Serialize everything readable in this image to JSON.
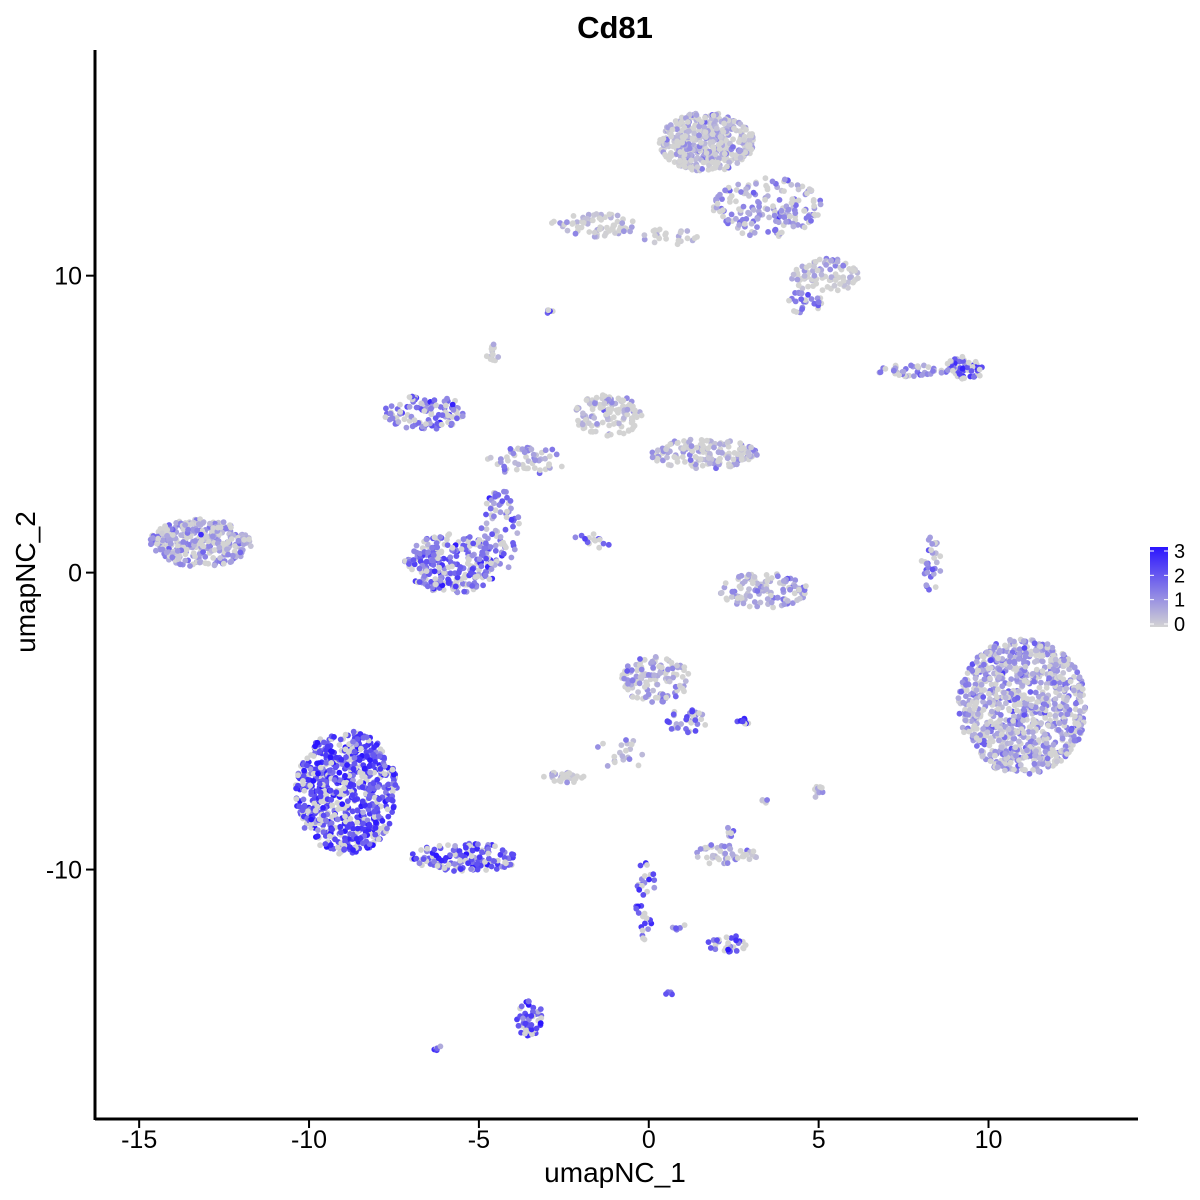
{
  "chart_data": {
    "type": "scatter",
    "title": "Cd81",
    "xlabel": "umapNC_1",
    "ylabel": "umapNC_2",
    "xlim": [
      -16.3,
      14.4
    ],
    "ylim": [
      -18.4,
      17.6
    ],
    "xticks": [
      -15,
      -10,
      -5,
      0,
      5,
      10
    ],
    "xtick_labels": [
      "-15",
      "-10",
      "-5",
      "0",
      "5",
      "10"
    ],
    "yticks": [
      -10,
      0,
      10
    ],
    "ytick_labels": [
      "-10",
      "0",
      "10"
    ],
    "grid": false,
    "legend": {
      "position": "right",
      "type": "colorbar",
      "ticks": [
        0,
        1,
        2,
        3
      ],
      "tick_labels": [
        "3",
        "2",
        "1",
        "0"
      ],
      "low_color": "#d3d3d3",
      "high_color": "#2b15ff"
    },
    "clusters": [
      {
        "cx": 1.7,
        "cy": 14.5,
        "rx": 1.4,
        "ry": 1.0,
        "n": 420,
        "expr": 0.4
      },
      {
        "cx": 3.5,
        "cy": 12.3,
        "rx": 1.6,
        "ry": 1.0,
        "n": 170,
        "expr": 0.9
      },
      {
        "cx": -1.6,
        "cy": 11.7,
        "rx": 1.3,
        "ry": 0.4,
        "n": 70,
        "expr": 0.1
      },
      {
        "cx": 0.6,
        "cy": 11.3,
        "rx": 1.0,
        "ry": 0.3,
        "n": 25,
        "expr": 0.1
      },
      {
        "cx": 5.2,
        "cy": 10.0,
        "rx": 1.0,
        "ry": 0.6,
        "n": 90,
        "expr": 0.4
      },
      {
        "cx": 4.6,
        "cy": 9.1,
        "rx": 0.5,
        "ry": 0.4,
        "n": 25,
        "expr": 1.5
      },
      {
        "cx": -2.9,
        "cy": 8.8,
        "rx": 0.1,
        "ry": 0.1,
        "n": 5,
        "expr": 2.0
      },
      {
        "cx": -4.6,
        "cy": 7.4,
        "rx": 0.2,
        "ry": 0.3,
        "n": 12,
        "expr": 0.0
      },
      {
        "cx": 9.3,
        "cy": 6.9,
        "rx": 0.6,
        "ry": 0.4,
        "n": 60,
        "expr": 1.8
      },
      {
        "cx": 7.7,
        "cy": 6.8,
        "rx": 1.0,
        "ry": 0.2,
        "n": 40,
        "expr": 0.9
      },
      {
        "cx": -6.6,
        "cy": 5.4,
        "rx": 1.2,
        "ry": 0.6,
        "n": 110,
        "expr": 1.5
      },
      {
        "cx": -1.2,
        "cy": 5.3,
        "rx": 1.0,
        "ry": 0.7,
        "n": 120,
        "expr": 0.1
      },
      {
        "cx": 1.6,
        "cy": 4.0,
        "rx": 1.6,
        "ry": 0.5,
        "n": 160,
        "expr": 0.4
      },
      {
        "cx": -3.6,
        "cy": 3.8,
        "rx": 1.2,
        "ry": 0.5,
        "n": 60,
        "expr": 0.7
      },
      {
        "cx": -4.4,
        "cy": 1.4,
        "rx": 0.6,
        "ry": 1.4,
        "n": 70,
        "expr": 1.2
      },
      {
        "cx": -13.2,
        "cy": 1.0,
        "rx": 1.5,
        "ry": 0.8,
        "n": 330,
        "expr": 0.8
      },
      {
        "cx": -5.8,
        "cy": 0.3,
        "rx": 1.4,
        "ry": 1.0,
        "n": 260,
        "expr": 1.6
      },
      {
        "cx": -1.6,
        "cy": 1.1,
        "rx": 0.6,
        "ry": 0.3,
        "n": 15,
        "expr": 1.8
      },
      {
        "cx": 3.4,
        "cy": -0.6,
        "rx": 1.3,
        "ry": 0.6,
        "n": 110,
        "expr": 0.6
      },
      {
        "cx": 8.3,
        "cy": 0.3,
        "rx": 0.3,
        "ry": 0.9,
        "n": 30,
        "expr": 1.4
      },
      {
        "cx": 11.0,
        "cy": -4.5,
        "rx": 1.9,
        "ry": 2.3,
        "n": 950,
        "expr": 0.8
      },
      {
        "cx": 0.2,
        "cy": -3.6,
        "rx": 1.0,
        "ry": 0.8,
        "n": 130,
        "expr": 0.6
      },
      {
        "cx": 1.1,
        "cy": -5.0,
        "rx": 0.6,
        "ry": 0.4,
        "n": 35,
        "expr": 1.3
      },
      {
        "cx": 2.8,
        "cy": -5.0,
        "rx": 0.2,
        "ry": 0.1,
        "n": 10,
        "expr": 2.5
      },
      {
        "cx": -0.8,
        "cy": -6.1,
        "rx": 0.8,
        "ry": 0.5,
        "n": 20,
        "expr": 0.3
      },
      {
        "cx": -2.5,
        "cy": -6.9,
        "rx": 0.6,
        "ry": 0.2,
        "n": 35,
        "expr": 0.2
      },
      {
        "cx": -8.9,
        "cy": -7.4,
        "rx": 1.5,
        "ry": 2.1,
        "n": 720,
        "expr": 2.2
      },
      {
        "cx": -5.4,
        "cy": -9.6,
        "rx": 1.6,
        "ry": 0.5,
        "n": 140,
        "expr": 2.0
      },
      {
        "cx": 5.0,
        "cy": -7.4,
        "rx": 0.2,
        "ry": 0.2,
        "n": 10,
        "expr": 0.3
      },
      {
        "cx": 3.4,
        "cy": -7.6,
        "rx": 0.1,
        "ry": 0.2,
        "n": 5,
        "expr": 0.5
      },
      {
        "cx": 2.3,
        "cy": -9.5,
        "rx": 0.9,
        "ry": 0.4,
        "n": 50,
        "expr": 0.5
      },
      {
        "cx": 2.4,
        "cy": -8.7,
        "rx": 0.1,
        "ry": 0.2,
        "n": 8,
        "expr": 0.3
      },
      {
        "cx": -0.1,
        "cy": -11.0,
        "rx": 0.3,
        "ry": 1.4,
        "n": 35,
        "expr": 2.0
      },
      {
        "cx": 2.3,
        "cy": -12.5,
        "rx": 0.6,
        "ry": 0.3,
        "n": 30,
        "expr": 2.0
      },
      {
        "cx": 0.8,
        "cy": -11.9,
        "rx": 0.3,
        "ry": 0.2,
        "n": 6,
        "expr": 1.5
      },
      {
        "cx": -3.5,
        "cy": -15.0,
        "rx": 0.4,
        "ry": 0.7,
        "n": 45,
        "expr": 2.1
      },
      {
        "cx": 0.6,
        "cy": -14.2,
        "rx": 0.1,
        "ry": 0.1,
        "n": 4,
        "expr": 1.5
      },
      {
        "cx": -6.2,
        "cy": -16.0,
        "rx": 0.15,
        "ry": 0.1,
        "n": 5,
        "expr": 1.8
      }
    ]
  }
}
